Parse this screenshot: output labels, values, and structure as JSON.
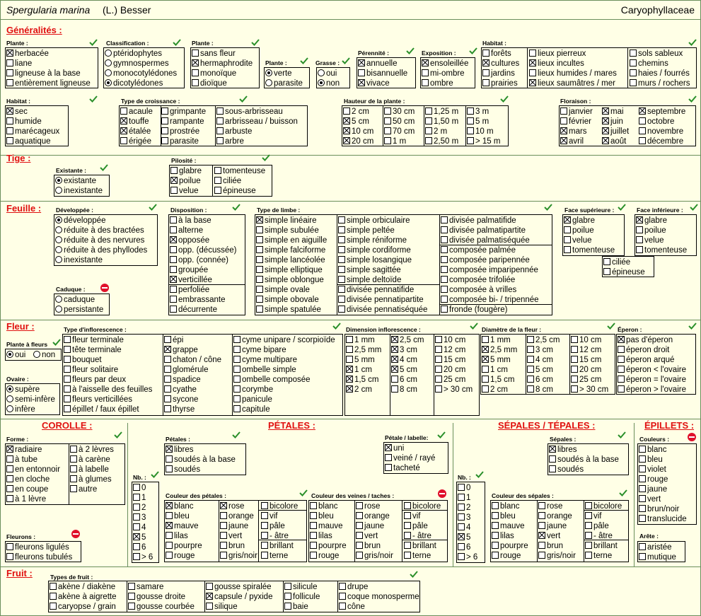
{
  "header": {
    "species": "Spergularia marina",
    "author": "(L.) Besser",
    "family": "Caryophyllaceae"
  },
  "sections": {
    "generalites": {
      "title": "Généralités :",
      "plante": {
        "title": "Plante :",
        "items": [
          "herbacée",
          "liane",
          "ligneuse à la base",
          "entièrement ligneuse"
        ],
        "checked": [
          0
        ]
      },
      "classification": {
        "title": "Classification :",
        "items": [
          "ptéridophytes",
          "gymnospermes",
          "monocotylédones",
          "dicotylédones"
        ],
        "selected": 3
      },
      "plante2": {
        "title": "Plante :",
        "items": [
          "sans fleur",
          "hermaphrodite",
          "monoïque",
          "dioïque"
        ],
        "checked": [
          1
        ]
      },
      "plante3": {
        "title": "Plante :",
        "items": [
          "verte",
          "parasite"
        ],
        "selected": 0
      },
      "grasse": {
        "title": "Grasse :",
        "items": [
          "oui",
          "non"
        ],
        "selected": 1
      },
      "perennite": {
        "title": "Pérennité :",
        "items": [
          "annuelle",
          "bisannuelle",
          "vivace"
        ],
        "checked": [
          0,
          2
        ]
      },
      "exposition": {
        "title": "Exposition :",
        "items": [
          "ensoleillée",
          "mi-ombre",
          "ombre"
        ],
        "checked": [
          0
        ]
      },
      "habitat": {
        "title": "Habitat :",
        "items": [
          "forêts",
          "cultures",
          "jardins",
          "prairies",
          "lieux pierreux",
          "lieux incultes",
          "lieux humides / mares",
          "lieux saumâtres / mer",
          "sols sableux",
          "chemins",
          "haies / fourrés",
          "murs / rochers"
        ],
        "checked": [
          1,
          5,
          7
        ]
      },
      "habitat2": {
        "title": "Habitat :",
        "items": [
          "sec",
          "humide",
          "marécageux",
          "aquatique"
        ],
        "checked": [
          0
        ]
      },
      "croissance": {
        "title": "Type de croissance :",
        "items": [
          "acaule",
          "touffe",
          "étalée",
          "érigée",
          "grimpante",
          "rampante",
          "prostrée",
          "parasite",
          "sous-arbrisseau",
          "arbrisseau / buisson",
          "arbuste",
          "arbre"
        ],
        "checked": [
          1,
          2
        ]
      },
      "hauteur": {
        "title": "Hauteur de la plante :",
        "items": [
          "2 cm",
          "5 cm",
          "10 cm",
          "20 cm",
          "30 cm",
          "50 cm",
          "70 cm",
          "1 m",
          "1,25 m",
          "1,50 m",
          "2 m",
          "2,50 m",
          "3 m",
          "5 m",
          "10 m",
          "> 15 m"
        ],
        "checked": [
          1,
          2,
          3
        ]
      },
      "floraison": {
        "title": "Floraison :",
        "items": [
          "janvier",
          "février",
          "mars",
          "avril",
          "mai",
          "juin",
          "juillet",
          "août",
          "septembre",
          "octobre",
          "novembre",
          "décembre"
        ],
        "checked": [
          2,
          3,
          4,
          5,
          6,
          7,
          8
        ]
      }
    },
    "tige": {
      "title": "Tige :",
      "existante": {
        "title": "Existante :",
        "items": [
          "existante",
          "inexistante"
        ],
        "selected": 0
      },
      "pilosite": {
        "title": "Pilosité :",
        "items": [
          "glabre",
          "poilue",
          "velue",
          "tomenteuse",
          "ciliée",
          "épineuse"
        ],
        "checked": [
          1
        ]
      }
    },
    "feuille": {
      "title": "Feuille :",
      "developpee": {
        "title": "Développée :",
        "items": [
          "développée",
          "réduite à des bractées",
          "réduite à des nervures",
          "réduite à des phyllodes",
          "inexistante"
        ],
        "selected": 0
      },
      "caduque": {
        "title": "Caduque :",
        "items": [
          "caduque",
          "persistante"
        ],
        "selected": -1
      },
      "disposition": {
        "title": "Disposition :",
        "items": [
          "à la base",
          "alterne",
          "opposée",
          "opp. (décussée)",
          "opp. (connée)",
          "groupée",
          "verticillée",
          "perfoliée",
          "embrassante",
          "décurrente"
        ],
        "checked": [
          2,
          6
        ]
      },
      "limbe": {
        "title": "Type de limbe :",
        "items": [
          "simple linéaire",
          "simple subulée",
          "simple en aiguille",
          "simple falciforme",
          "simple lancéolée",
          "simple elliptique",
          "simple oblongue",
          "simple ovale",
          "simple obovale",
          "simple spatulée",
          "simple orbiculaire",
          "simple peltée",
          "simple réniforme",
          "simple cordiforme",
          "simple losangique",
          "simple sagittée",
          "simple deltoïde",
          "divisée pennatifide",
          "divisée pennatipartite",
          "divisée pennatiséquée",
          "divisée palmatifide",
          "divisée palmatipartite",
          "divisée palmatiséquée",
          "composée palmée",
          "composée paripennée",
          "composée imparipennée",
          "composée trifoliée",
          "composée à vrilles",
          "composée bi- / tripennée",
          "fronde (fougère)"
        ],
        "checked": [
          0
        ]
      },
      "face_sup": {
        "title": "Face supérieure :",
        "items": [
          "glabre",
          "poilue",
          "velue",
          "tomenteuse"
        ],
        "checked": [
          0
        ]
      },
      "face_inf": {
        "title": "Face inférieure :",
        "items": [
          "glabre",
          "poilue",
          "velue",
          "tomenteuse"
        ],
        "checked": [
          0
        ]
      },
      "ciliee": {
        "items": [
          "ciliée",
          "épineuse"
        ],
        "checked": []
      }
    },
    "fleur": {
      "title": "Fleur :",
      "plante_a_fleurs": {
        "title": "Plante à fleurs",
        "items": [
          "oui",
          "non"
        ],
        "selected": 0
      },
      "ovaire": {
        "title": "Ovaire :",
        "items": [
          "supère",
          "semi-infère",
          "infère"
        ],
        "selected": 0
      },
      "inflorescence": {
        "title": "Type d'inflorescence :",
        "items": [
          "fleur terminale",
          "tête terminale",
          "bouquet",
          "fleur solitaire",
          "fleurs par deux",
          "à l'aisselle des feuilles",
          "fleurs verticillées",
          "épillet / faux épillet",
          "épi",
          "grappe",
          "chaton / cône",
          "glomérule",
          "spadice",
          "cyathe",
          "sycone",
          "thyrse",
          "cyme unipare / scorpioïde",
          "cyme bipare",
          "cyme multipare",
          "ombelle simple",
          "ombelle composée",
          "corymbe",
          "panicule",
          "capitule"
        ],
        "checked": [
          9
        ]
      },
      "dim_infl": {
        "title": "Dimension inflorescence :",
        "items": [
          "1 mm",
          "2,5 mm",
          "5 mm",
          "1 cm",
          "1,5 cm",
          "2 cm",
          "2,5 cm",
          "3 cm",
          "4 cm",
          "5 cm",
          "6 cm",
          "8 cm",
          "10 cm",
          "12 cm",
          "15 cm",
          "20 cm",
          "25 cm",
          "> 30 cm"
        ],
        "checked": [
          3,
          4,
          5,
          6,
          7,
          8,
          9
        ]
      },
      "diam_fleur": {
        "title": "Diamètre de la fleur :",
        "items": [
          "1 mm",
          "2,5 mm",
          "5 mm",
          "1 cm",
          "1,5 cm",
          "2 cm",
          "2,5 cm",
          "3 cm",
          "4 cm",
          "5 cm",
          "6 cm",
          "8 cm",
          "10 cm",
          "12 cm",
          "15 cm",
          "20 cm",
          "25 cm",
          "> 30 cm"
        ],
        "checked": [
          1,
          2
        ]
      },
      "eperon": {
        "title": "Éperon :",
        "items": [
          "pas d'éperon",
          "éperon droit",
          "éperon arqué",
          "éperon < l'ovaire",
          "éperon = l'ovaire",
          "éperon > l'ovaire"
        ],
        "checked": [
          0
        ]
      }
    },
    "corolle": {
      "title": "COROLLE :",
      "forme": {
        "title": "Forme :",
        "items": [
          "radiaire",
          "à tube",
          "en entonnoir",
          "en cloche",
          "en coupe",
          "à 1 lèvre",
          "à 2 lèvres",
          "à carène",
          "à labelle",
          "à glumes",
          "autre"
        ],
        "checked": [
          0
        ]
      },
      "fleurons": {
        "title": "Fleurons :",
        "items": [
          "fleurons ligulés",
          "fleurons tubulés"
        ],
        "checked": []
      }
    },
    "petales": {
      "title": "PÉTALES :",
      "nb": {
        "title": "Nb. :",
        "items": [
          "0",
          "1",
          "2",
          "3",
          "4",
          "5",
          "6",
          "> 6"
        ],
        "checked": [
          5
        ]
      },
      "petales": {
        "title": "Pétales :",
        "items": [
          "libres",
          "soudés à la base",
          "soudés"
        ],
        "checked": [
          0
        ]
      },
      "labelle": {
        "title": "Pétale / labelle:",
        "items": [
          "uni",
          "veiné / rayé",
          "tacheté"
        ],
        "checked": [
          0
        ]
      },
      "couleur": {
        "title": "Couleur des pétales :",
        "items": [
          "blanc",
          "bleu",
          "mauve",
          "lilas",
          "pourpre",
          "rouge",
          "rose",
          "orange",
          "jaune",
          "vert",
          "brun",
          "gris/noir",
          "bicolore",
          "vif",
          "pâle",
          "- âtre",
          "brillant",
          "terne"
        ],
        "checked": [
          0,
          2,
          6
        ]
      },
      "veines": {
        "title": "Couleur des veines / taches :",
        "items": [
          "blanc",
          "bleu",
          "mauve",
          "lilas",
          "pourpre",
          "rouge",
          "rose",
          "orange",
          "jaune",
          "vert",
          "brun",
          "gris/noir",
          "bicolore",
          "vif",
          "pâle",
          "- âtre",
          "brillant",
          "terne"
        ],
        "checked": []
      }
    },
    "sepales": {
      "title": "SÉPALES / TÉPALES :",
      "nb": {
        "title": "Nb. :",
        "items": [
          "0",
          "1",
          "2",
          "3",
          "4",
          "5",
          "6",
          "> 6"
        ],
        "checked": [
          5
        ]
      },
      "sepales": {
        "title": "Sépales :",
        "items": [
          "libres",
          "soudés à la base",
          "soudés"
        ],
        "checked": [
          0
        ]
      },
      "couleur": {
        "title": "Couleur des sépales :",
        "items": [
          "blanc",
          "bleu",
          "mauve",
          "lilas",
          "pourpre",
          "rouge",
          "rose",
          "orange",
          "jaune",
          "vert",
          "brun",
          "gris/noir",
          "bicolore",
          "vif",
          "pâle",
          "- âtre",
          "brillant",
          "terne"
        ],
        "checked": [
          9
        ]
      }
    },
    "epillets": {
      "title": "ÉPILLETS :",
      "couleurs": {
        "title": "Couleurs :",
        "items": [
          "blanc",
          "bleu",
          "violet",
          "rouge",
          "jaune",
          "vert",
          "brun/noir",
          "translucide"
        ],
        "checked": []
      },
      "arete": {
        "title": "Arête :",
        "items": [
          "aristée",
          "mutique"
        ],
        "checked": []
      }
    },
    "fruit": {
      "title": "Fruit :",
      "types": {
        "title": "Types de fruit :",
        "items": [
          "akène / diakène",
          "akène à aigrette",
          "caryopse / grain",
          "samare",
          "gousse droite",
          "gousse courbée",
          "gousse spiralée",
          "capsule / pyxide",
          "silique",
          "silicule",
          "follicule",
          "baie",
          "drupe",
          "coque monosperme",
          "cône"
        ],
        "checked": [
          7
        ]
      }
    }
  },
  "colors": {
    "background": "#ffffe6",
    "section_title": "#e01010",
    "checkmark": "#2a8f2a",
    "not_allowed": "#e0102a"
  }
}
